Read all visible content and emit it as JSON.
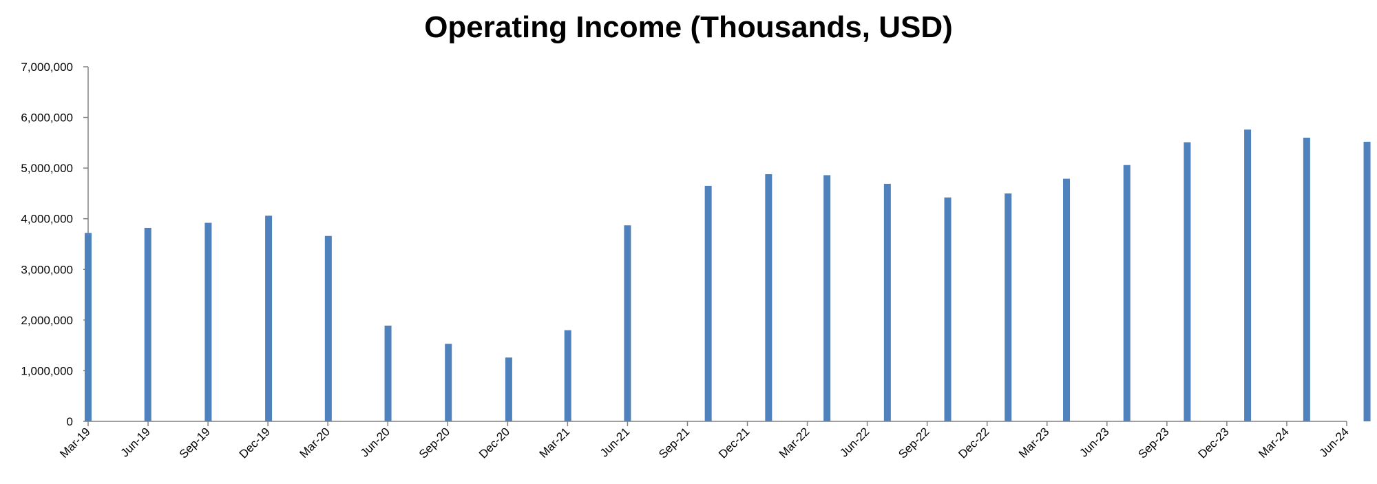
{
  "chart_data": {
    "type": "bar",
    "title": "Operating Income (Thousands, USD)",
    "xlabel": "",
    "ylabel": "",
    "ylim": [
      0,
      7000000
    ],
    "yticks": [
      0,
      1000000,
      2000000,
      3000000,
      4000000,
      5000000,
      6000000,
      7000000
    ],
    "ytick_labels": [
      "0",
      "1,000,000",
      "2,000,000",
      "3,000,000",
      "4,000,000",
      "5,000,000",
      "6,000,000",
      "7,000,000"
    ],
    "xtick_labels": [
      "Mar-19",
      "Jun-19",
      "Sep-19",
      "Dec-19",
      "Mar-20",
      "Jun-20",
      "Sep-20",
      "Dec-20",
      "Mar-21",
      "Jun-21",
      "Sep-21",
      "Dec-21",
      "Mar-22",
      "Jun-22",
      "Sep-22",
      "Dec-22",
      "Mar-23",
      "Jun-23",
      "Sep-23",
      "Dec-23",
      "Mar-24",
      "Jun-24"
    ],
    "x_range": [
      "2019-03-31",
      "2024-06-30"
    ],
    "points": [
      {
        "date": "2019-03-31",
        "value": 3720000
      },
      {
        "date": "2019-06-30",
        "value": 3820000
      },
      {
        "date": "2019-09-30",
        "value": 3920000
      },
      {
        "date": "2019-12-31",
        "value": 4060000
      },
      {
        "date": "2020-03-31",
        "value": 3660000
      },
      {
        "date": "2020-06-30",
        "value": 1890000
      },
      {
        "date": "2020-09-30",
        "value": 1530000
      },
      {
        "date": "2020-12-31",
        "value": 1260000
      },
      {
        "date": "2021-03-31",
        "value": 1800000
      },
      {
        "date": "2021-06-30",
        "value": 3870000
      },
      {
        "date": "2021-10-31",
        "value": 4650000
      },
      {
        "date": "2022-01-31",
        "value": 4880000
      },
      {
        "date": "2022-04-30",
        "value": 4860000
      },
      {
        "date": "2022-07-31",
        "value": 4690000
      },
      {
        "date": "2022-10-31",
        "value": 4420000
      },
      {
        "date": "2023-01-31",
        "value": 4500000
      },
      {
        "date": "2023-04-30",
        "value": 4790000
      },
      {
        "date": "2023-07-31",
        "value": 5060000
      },
      {
        "date": "2023-10-31",
        "value": 5510000
      },
      {
        "date": "2024-01-31",
        "value": 5760000
      },
      {
        "date": "2024-04-30",
        "value": 5600000
      },
      {
        "date": "2024-07-31",
        "value": 5520000
      }
    ],
    "bar_color": "#4f81bd",
    "grid": false,
    "legend": false
  }
}
